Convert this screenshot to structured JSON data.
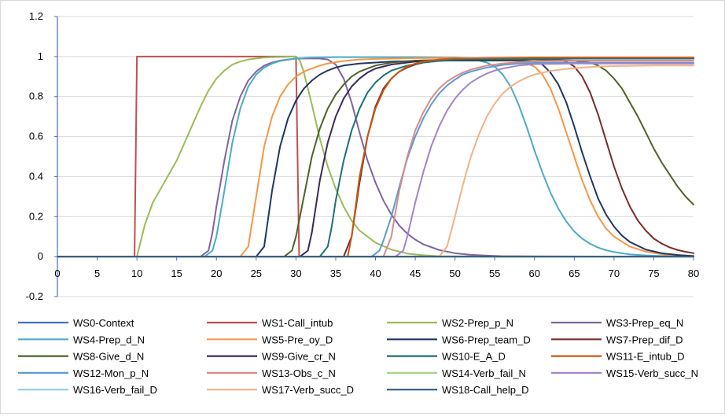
{
  "chart_data": {
    "type": "line",
    "title": "",
    "xlabel": "",
    "ylabel": "",
    "xlim": [
      0,
      80
    ],
    "ylim": [
      -0.2,
      1.2
    ],
    "xticks": [
      0,
      5,
      10,
      15,
      20,
      25,
      30,
      35,
      40,
      45,
      50,
      55,
      60,
      65,
      70,
      75,
      80
    ],
    "yticks": [
      -0.2,
      0,
      0.2,
      0.4,
      0.6,
      0.8,
      1,
      1.2
    ],
    "xtick_labels": [
      "0",
      "5",
      "10",
      "15",
      "20",
      "25",
      "30",
      "35",
      "40",
      "45",
      "50",
      "55",
      "60",
      "65",
      "70",
      "75",
      "80"
    ],
    "ytick_labels": [
      "-0.2",
      "0",
      "0.2",
      "0.4",
      "0.6",
      "0.8",
      "1",
      "1.2"
    ],
    "grid": "horizontal",
    "legend": "bottom",
    "series": [
      {
        "name": "WS0-Context",
        "color": "#4472C4",
        "x": [
          0,
          80
        ],
        "y": [
          0,
          0
        ]
      },
      {
        "name": "WS1-Call_intub",
        "color": "#C0504D",
        "x": [
          0,
          9.7,
          10,
          30,
          30.4,
          80
        ],
        "y": [
          0,
          0,
          1,
          1,
          0,
          0
        ]
      },
      {
        "name": "WS2-Prep_p_N",
        "color": "#9BBB59",
        "x": [
          0,
          10,
          11,
          12,
          13,
          14,
          15,
          16,
          17,
          18,
          19,
          20,
          21,
          22,
          23,
          24,
          25,
          26,
          27,
          28,
          29,
          30,
          30.5,
          31,
          32,
          33,
          34,
          35,
          36,
          37,
          38,
          40,
          42,
          44,
          46,
          48,
          80
        ],
        "y": [
          0,
          0,
          0.16,
          0.27,
          0.34,
          0.41,
          0.48,
          0.57,
          0.66,
          0.75,
          0.83,
          0.89,
          0.93,
          0.96,
          0.975,
          0.985,
          0.99,
          0.995,
          0.997,
          0.998,
          0.999,
          1,
          0.98,
          0.92,
          0.76,
          0.59,
          0.45,
          0.34,
          0.25,
          0.18,
          0.13,
          0.07,
          0.035,
          0.015,
          0.007,
          0.002,
          0
        ]
      },
      {
        "name": "WS3-Prep_eq_N",
        "color": "#8064A2",
        "x": [
          0,
          18,
          19,
          19.5,
          20,
          21,
          22,
          23,
          24,
          25,
          26,
          27,
          28,
          29,
          30,
          31,
          32,
          33,
          34,
          35,
          36,
          37,
          38,
          39,
          40,
          41,
          42,
          43,
          44,
          45,
          46,
          48,
          50,
          52,
          54,
          56,
          60,
          80
        ],
        "y": [
          0,
          0,
          0.03,
          0.12,
          0.25,
          0.48,
          0.68,
          0.8,
          0.88,
          0.925,
          0.955,
          0.97,
          0.98,
          0.985,
          0.99,
          0.99,
          0.99,
          0.99,
          0.985,
          0.96,
          0.89,
          0.77,
          0.62,
          0.48,
          0.37,
          0.28,
          0.21,
          0.155,
          0.115,
          0.085,
          0.062,
          0.033,
          0.017,
          0.009,
          0.005,
          0.002,
          0.001,
          0
        ]
      },
      {
        "name": "WS4-Prep_d_N",
        "color": "#4BACC6",
        "x": [
          0,
          18.5,
          19.5,
          20,
          21,
          22,
          23,
          24,
          25,
          26,
          27,
          28,
          30,
          32,
          35,
          40,
          45,
          50,
          52,
          54,
          55,
          56,
          57,
          58,
          59,
          60,
          61,
          62,
          63,
          64,
          65,
          66,
          67,
          68,
          69,
          70,
          72,
          74,
          76,
          78,
          80
        ],
        "y": [
          0,
          0,
          0.03,
          0.1,
          0.33,
          0.57,
          0.74,
          0.85,
          0.91,
          0.945,
          0.965,
          0.978,
          0.99,
          0.995,
          0.997,
          0.997,
          0.997,
          0.995,
          0.99,
          0.97,
          0.95,
          0.91,
          0.85,
          0.76,
          0.65,
          0.53,
          0.42,
          0.32,
          0.24,
          0.175,
          0.126,
          0.09,
          0.064,
          0.045,
          0.032,
          0.023,
          0.011,
          0.006,
          0.003,
          0.001,
          0
        ]
      },
      {
        "name": "WS5-Pre_oy_D",
        "color": "#F79646",
        "x": [
          0,
          23,
          24,
          25,
          26,
          27,
          28,
          29,
          30,
          31,
          32,
          33,
          34,
          35,
          36,
          38,
          40,
          45,
          50,
          55,
          58,
          60,
          61,
          62,
          63,
          64,
          65,
          66,
          67,
          68,
          69,
          70,
          72,
          74,
          76,
          78,
          80
        ],
        "y": [
          0,
          0,
          0.05,
          0.3,
          0.55,
          0.7,
          0.8,
          0.86,
          0.9,
          0.925,
          0.94,
          0.955,
          0.965,
          0.972,
          0.978,
          0.985,
          0.988,
          0.992,
          0.993,
          0.99,
          0.98,
          0.95,
          0.91,
          0.84,
          0.74,
          0.62,
          0.5,
          0.38,
          0.28,
          0.2,
          0.14,
          0.1,
          0.05,
          0.025,
          0.012,
          0.006,
          0.003
        ]
      },
      {
        "name": "WS6-Prep_team_D",
        "color": "#1F3864",
        "x": [
          0,
          25,
          26,
          27,
          28,
          29,
          30,
          31,
          32,
          33,
          34,
          35,
          36,
          38,
          40,
          42,
          45,
          50,
          55,
          58,
          60,
          61,
          62,
          63,
          64,
          65,
          66,
          67,
          68,
          69,
          70,
          71,
          72,
          74,
          76,
          78,
          80
        ],
        "y": [
          0,
          0,
          0.05,
          0.33,
          0.55,
          0.69,
          0.78,
          0.84,
          0.88,
          0.91,
          0.93,
          0.945,
          0.955,
          0.965,
          0.97,
          0.975,
          0.978,
          0.98,
          0.98,
          0.98,
          0.975,
          0.96,
          0.92,
          0.86,
          0.77,
          0.65,
          0.52,
          0.4,
          0.29,
          0.21,
          0.15,
          0.105,
          0.073,
          0.035,
          0.017,
          0.008,
          0.003
        ]
      },
      {
        "name": "WS7-Prep_dif_D",
        "color": "#7B2C2C",
        "x": [
          0,
          36,
          37,
          38,
          39,
          40,
          41,
          42,
          43,
          44,
          45,
          46,
          48,
          50,
          55,
          60,
          62,
          63,
          64,
          65,
          66,
          67,
          68,
          69,
          70,
          71,
          72,
          73,
          74,
          75,
          76,
          77,
          78,
          79,
          80
        ],
        "y": [
          0,
          0,
          0.1,
          0.37,
          0.6,
          0.75,
          0.84,
          0.89,
          0.925,
          0.945,
          0.96,
          0.97,
          0.98,
          0.985,
          0.99,
          0.99,
          0.988,
          0.985,
          0.975,
          0.95,
          0.9,
          0.82,
          0.71,
          0.58,
          0.45,
          0.34,
          0.25,
          0.18,
          0.13,
          0.09,
          0.065,
          0.046,
          0.033,
          0.024,
          0.017
        ]
      },
      {
        "name": "WS8-Give_d_N",
        "color": "#4F6228",
        "x": [
          0,
          28.5,
          29.5,
          30,
          31,
          32,
          33,
          34,
          35,
          36,
          37,
          38,
          40,
          42,
          45,
          50,
          55,
          60,
          65,
          67,
          68,
          69,
          70,
          71,
          72,
          73,
          74,
          75,
          76,
          77,
          78,
          79,
          80
        ],
        "y": [
          0,
          0,
          0.03,
          0.1,
          0.3,
          0.5,
          0.64,
          0.74,
          0.81,
          0.86,
          0.9,
          0.925,
          0.955,
          0.97,
          0.98,
          0.985,
          0.985,
          0.985,
          0.98,
          0.97,
          0.955,
          0.93,
          0.89,
          0.84,
          0.77,
          0.7,
          0.62,
          0.54,
          0.47,
          0.41,
          0.35,
          0.3,
          0.26
        ]
      },
      {
        "name": "WS9-Give_cr_N",
        "color": "#3B2A5C",
        "x": [
          0,
          30.5,
          31.5,
          32,
          33,
          34,
          35,
          36,
          37,
          38,
          39,
          40,
          42,
          45,
          50,
          55,
          60,
          65,
          70,
          75,
          80
        ],
        "y": [
          0,
          0,
          0.03,
          0.12,
          0.38,
          0.57,
          0.7,
          0.79,
          0.85,
          0.89,
          0.92,
          0.94,
          0.96,
          0.975,
          0.985,
          0.99,
          0.99,
          0.99,
          0.99,
          0.99,
          0.99
        ]
      },
      {
        "name": "WS10-E_A_D",
        "color": "#1F6F7A",
        "x": [
          0,
          33,
          34,
          34.5,
          35,
          36,
          37,
          38,
          39,
          40,
          41,
          42,
          44,
          46,
          48,
          50,
          55,
          60,
          65,
          70,
          75,
          80
        ],
        "y": [
          0,
          0,
          0.05,
          0.15,
          0.28,
          0.48,
          0.63,
          0.74,
          0.82,
          0.87,
          0.905,
          0.93,
          0.955,
          0.97,
          0.978,
          0.983,
          0.988,
          0.99,
          0.99,
          0.99,
          0.99,
          0.99
        ]
      },
      {
        "name": "WS11-E_intub_D",
        "color": "#C65911",
        "x": [
          0,
          36.5,
          37,
          37.5,
          38,
          39,
          40,
          41,
          42,
          43,
          44,
          45,
          46,
          48,
          50,
          55,
          60,
          65,
          70,
          75,
          80
        ],
        "y": [
          0,
          0,
          0.1,
          0.25,
          0.4,
          0.6,
          0.74,
          0.83,
          0.89,
          0.925,
          0.95,
          0.965,
          0.975,
          0.985,
          0.99,
          0.993,
          0.995,
          0.995,
          0.995,
          0.995,
          0.995
        ]
      },
      {
        "name": "WS12-Mon_p_N",
        "color": "#5B9BD5",
        "x": [
          0,
          39.5,
          40.5,
          41,
          42,
          43,
          44,
          45,
          46,
          47,
          48,
          49,
          50,
          51,
          52,
          54,
          56,
          58,
          60,
          65,
          70,
          75,
          80
        ],
        "y": [
          0,
          0,
          0.03,
          0.08,
          0.2,
          0.35,
          0.49,
          0.6,
          0.69,
          0.76,
          0.815,
          0.855,
          0.885,
          0.91,
          0.925,
          0.945,
          0.958,
          0.965,
          0.968,
          0.97,
          0.97,
          0.97,
          0.97
        ]
      },
      {
        "name": "WS13-Obs_c_N",
        "color": "#DA8A8A",
        "x": [
          0,
          41,
          42,
          42.5,
          43,
          44,
          45,
          46,
          47,
          48,
          49,
          50,
          51,
          52,
          54,
          56,
          58,
          60,
          65,
          70,
          75,
          80
        ],
        "y": [
          0,
          0,
          0.1,
          0.22,
          0.33,
          0.5,
          0.63,
          0.72,
          0.79,
          0.84,
          0.875,
          0.9,
          0.92,
          0.935,
          0.955,
          0.965,
          0.972,
          0.976,
          0.98,
          0.98,
          0.98,
          0.98
        ]
      },
      {
        "name": "WS14-Verb_fail_N",
        "color": "#A9D18E",
        "x": [
          0,
          80
        ],
        "y": [
          0,
          0
        ]
      },
      {
        "name": "WS15-Verb_succ_N",
        "color": "#A285C6",
        "x": [
          0,
          42.5,
          43.5,
          44,
          45,
          46,
          47,
          48,
          49,
          50,
          51,
          52,
          53,
          54,
          55,
          56,
          58,
          60,
          65,
          70,
          75,
          80
        ],
        "y": [
          0,
          0,
          0.03,
          0.1,
          0.27,
          0.42,
          0.55,
          0.65,
          0.73,
          0.79,
          0.835,
          0.87,
          0.895,
          0.915,
          0.93,
          0.94,
          0.955,
          0.962,
          0.965,
          0.965,
          0.965,
          0.965
        ]
      },
      {
        "name": "WS16-Verb_fail_D",
        "color": "#92CDDC",
        "x": [
          0,
          80
        ],
        "y": [
          0,
          0
        ]
      },
      {
        "name": "WS17-Verb_succ_D",
        "color": "#F4B183",
        "x": [
          0,
          48,
          49,
          50,
          51,
          52,
          53,
          54,
          55,
          56,
          57,
          58,
          59,
          60,
          62,
          64,
          66,
          68,
          70,
          75,
          80
        ],
        "y": [
          0,
          0,
          0.05,
          0.2,
          0.36,
          0.5,
          0.61,
          0.7,
          0.765,
          0.815,
          0.85,
          0.875,
          0.895,
          0.91,
          0.928,
          0.938,
          0.945,
          0.95,
          0.952,
          0.955,
          0.955
        ]
      },
      {
        "name": "WS18-Call_help_D",
        "color": "#2E5B88",
        "x": [
          0,
          80
        ],
        "y": [
          0,
          0
        ]
      }
    ]
  }
}
